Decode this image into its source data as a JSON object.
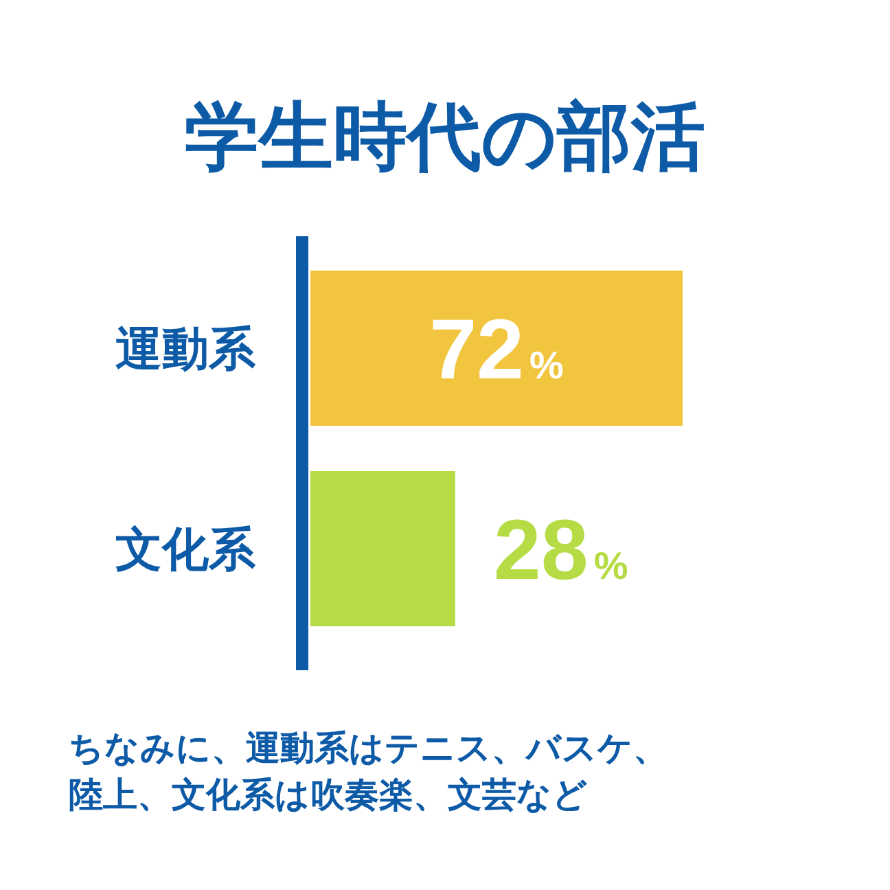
{
  "chart_data": {
    "type": "bar",
    "orientation": "horizontal",
    "title": "学生時代の部活",
    "categories": [
      "運動系",
      "文化系"
    ],
    "values": [
      72,
      28
    ],
    "colors": [
      "#f2c53f",
      "#b5dc44"
    ],
    "value_labels": [
      "72%",
      "28%"
    ],
    "tick_labels": "y",
    "annotations": [
      "ちなみに、運動系はテニス、バスケ、陸上、文化系は吹奏楽、文芸など"
    ]
  }
}
